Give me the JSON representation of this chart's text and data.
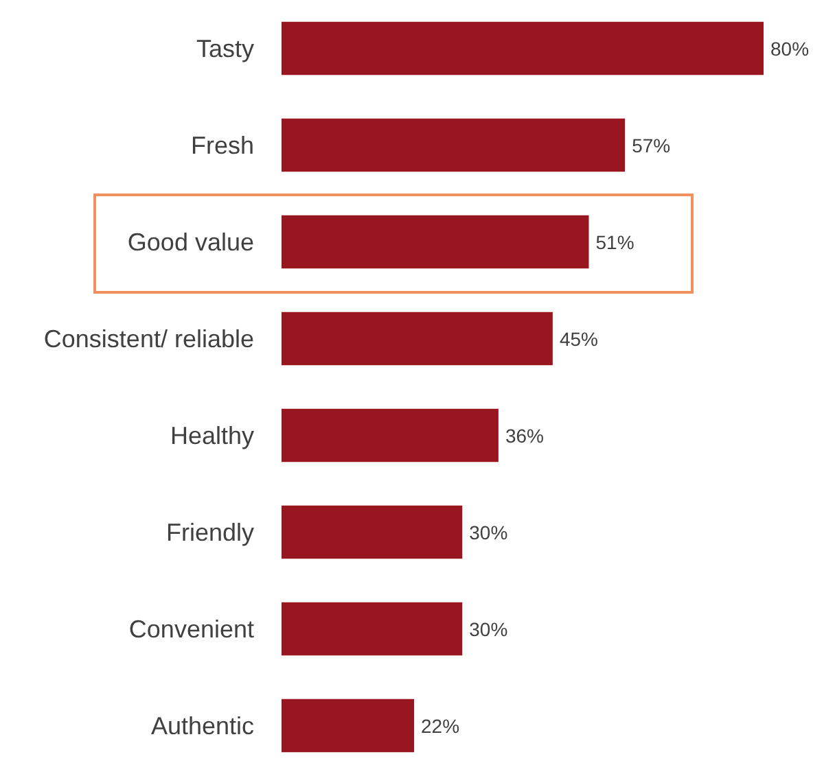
{
  "chart_data": {
    "type": "bar",
    "orientation": "horizontal",
    "categories": [
      "Tasty",
      "Fresh",
      "Good value",
      "Consistent/ reliable",
      "Healthy",
      "Friendly",
      "Convenient",
      "Authentic"
    ],
    "values": [
      80,
      57,
      51,
      45,
      36,
      30,
      30,
      22
    ],
    "value_labels": [
      "80%",
      "57%",
      "51%",
      "45%",
      "36%",
      "30%",
      "30%",
      "22%"
    ],
    "color": "#98161f"
  }
}
